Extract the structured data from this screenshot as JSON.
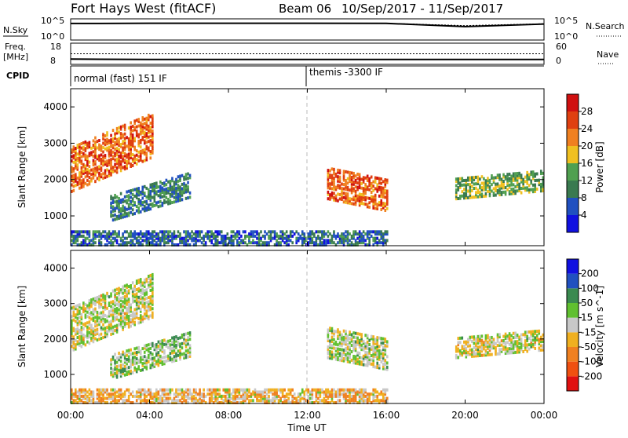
{
  "header": {
    "site": "Fort Hays West (fitACF)",
    "beam": "Beam 06",
    "date_range": "10/Sep/2017 - 11/Sep/2017"
  },
  "top_panels": {
    "nsky_label": "N.Sky",
    "nsky_ticks": [
      "10^5",
      "10^0"
    ],
    "nsearch_label": "N.Search",
    "nsearch_ticks": [
      "10^5",
      "10^0"
    ],
    "freq_label": "Freq.",
    "freq_unit": "[MHz]",
    "freq_ticks": [
      "18",
      "8"
    ],
    "nave_label": "Nave",
    "nave_ticks": [
      "60",
      "0"
    ],
    "cpid_label": "CPID",
    "cpid_modes": [
      "normal (fast) 151 IF",
      "themis -3300 IF"
    ]
  },
  "power_panel": {
    "ylabel": "Slant Range [km]",
    "yticks": [
      "1000",
      "2000",
      "3000",
      "4000"
    ],
    "colorbar_label": "Power [dB]",
    "colorbar_ticks": [
      "4",
      "8",
      "12",
      "16",
      "20",
      "24",
      "28"
    ],
    "colors": [
      "#1010e0",
      "#2050c0",
      "#3a7a50",
      "#50a050",
      "#f0c020",
      "#f08020",
      "#e04010",
      "#d01010"
    ]
  },
  "velocity_panel": {
    "ylabel": "Slant Range [km]",
    "yticks": [
      "1000",
      "2000",
      "3000",
      "4000"
    ],
    "colorbar_label": "Velocity [m s^-1]",
    "colorbar_ticks": [
      "-200",
      "-100",
      "-50",
      "-15",
      "15",
      "50",
      "100",
      "200"
    ],
    "colors": [
      "#e01010",
      "#f05010",
      "#f08020",
      "#f0b020",
      "#c8c8c8",
      "#60c030",
      "#3a8a50",
      "#2050c0",
      "#1010e0"
    ]
  },
  "xaxis": {
    "label": "Time UT",
    "ticks": [
      "00:00",
      "04:00",
      "08:00",
      "12:00",
      "16:00",
      "20:00",
      "00:00"
    ]
  },
  "chart_data": [
    {
      "type": "line",
      "title": "N.Sky / N.Search",
      "x": [
        "00:00",
        "04:00",
        "08:00",
        "12:00",
        "16:00",
        "20:00",
        "24:00"
      ],
      "series": [
        {
          "name": "N.Sky",
          "values": [
            8000,
            9000,
            9000,
            9000,
            8500,
            1500,
            6000
          ]
        },
        {
          "name": "N.Search",
          "values": [
            9500,
            9500,
            9500,
            9500,
            9000,
            2500,
            7000
          ]
        }
      ],
      "ylim": [
        1,
        100000
      ],
      "yscale": "log"
    },
    {
      "type": "line",
      "title": "Freq. / Nave",
      "x": [
        "00:00",
        "04:00",
        "08:00",
        "12:00",
        "16:00",
        "20:00",
        "24:00"
      ],
      "series": [
        {
          "name": "Freq.",
          "values": [
            10.5,
            10.3,
            10.3,
            10.3,
            10.3,
            10.3,
            10.3
          ]
        },
        {
          "name": "Nave",
          "values": [
            30,
            30,
            30,
            30,
            30,
            30,
            30
          ]
        }
      ],
      "ylim": [
        8,
        18
      ]
    },
    {
      "type": "heatmap",
      "title": "Power [dB]",
      "xlabel": "Time UT",
      "ylabel": "Slant Range [km]",
      "xlim": [
        0,
        24
      ],
      "ylim": [
        180,
        4500
      ],
      "clim": [
        0,
        32
      ],
      "regions": [
        {
          "t0": 0.0,
          "t1": 4.2,
          "r0": 1650,
          "r1": 2900,
          "power": 24,
          "slope": 230
        },
        {
          "t0": 2.0,
          "t1": 6.0,
          "r0": 850,
          "r1": 1550,
          "power": 10,
          "slope": 160
        },
        {
          "t0": 13.0,
          "t1": 16.0,
          "r0": 1450,
          "r1": 2300,
          "power": 24,
          "slope": -110
        },
        {
          "t0": 19.5,
          "t1": 24.0,
          "r0": 1450,
          "r1": 2000,
          "power": 14,
          "slope": 50
        },
        {
          "t0": 0.0,
          "t1": 16.0,
          "r0": 180,
          "r1": 600,
          "power": 8,
          "slope": 0
        }
      ]
    },
    {
      "type": "heatmap",
      "title": "Velocity [m s^-1]",
      "xlabel": "Time UT",
      "ylabel": "Slant Range [km]",
      "xlim": [
        0,
        24
      ],
      "ylim": [
        180,
        4500
      ],
      "clim": [
        -200,
        200
      ],
      "regions": [
        {
          "t0": 0.0,
          "t1": 4.2,
          "r0": 1650,
          "r1": 2900,
          "velocity": 0,
          "slope": 230
        },
        {
          "t0": 2.0,
          "t1": 6.0,
          "r0": 850,
          "r1": 1550,
          "velocity": 30,
          "slope": 160
        },
        {
          "t0": 13.0,
          "t1": 16.0,
          "r0": 1450,
          "r1": 2300,
          "velocity": 10,
          "slope": -110
        },
        {
          "t0": 19.5,
          "t1": 24.0,
          "r0": 1450,
          "r1": 2000,
          "velocity": 0,
          "slope": 50
        },
        {
          "t0": 0.0,
          "t1": 16.0,
          "r0": 180,
          "r1": 600,
          "velocity": -40,
          "slope": 0
        }
      ]
    }
  ]
}
